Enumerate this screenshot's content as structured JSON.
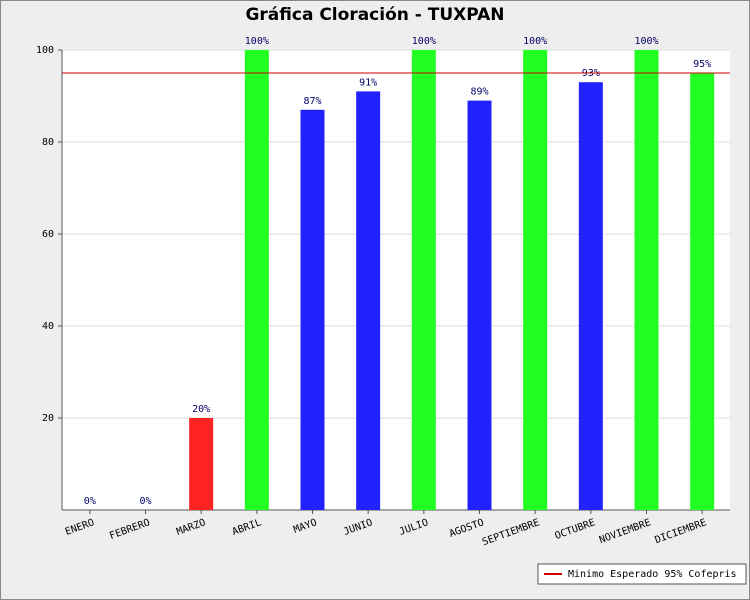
{
  "chart_data": {
    "type": "bar",
    "title": "Gráfica Cloración - TUXPAN",
    "categories": [
      "ENERO",
      "FEBRERO",
      "MARZO",
      "ABRIL",
      "MAYO",
      "JUNIO",
      "JULIO",
      "AGOSTO",
      "SEPTIEMBRE",
      "OCTUBRE",
      "NOVIEMBRE",
      "DICIEMBRE"
    ],
    "values": [
      0,
      0,
      20,
      100,
      87,
      91,
      100,
      89,
      100,
      93,
      100,
      95
    ],
    "value_labels": [
      "0%",
      "0%",
      "20%",
      "100%",
      "87%",
      "91%",
      "100%",
      "89%",
      "100%",
      "93%",
      "100%",
      "95%"
    ],
    "colors": [
      "#ff2222",
      "#ff2222",
      "#ff2222",
      "#22ff22",
      "#2222ff",
      "#2222ff",
      "#22ff22",
      "#2222ff",
      "#22ff22",
      "#2222ff",
      "#22ff22",
      "#22ff22"
    ],
    "ylim": [
      0,
      100
    ],
    "yticks": [
      20,
      40,
      60,
      80,
      100
    ],
    "grid": true,
    "reference_line": {
      "value": 95,
      "label": "Minimo Esperado 95% Cofepris",
      "color": "#cc0000"
    },
    "legend": "bottom-right"
  }
}
